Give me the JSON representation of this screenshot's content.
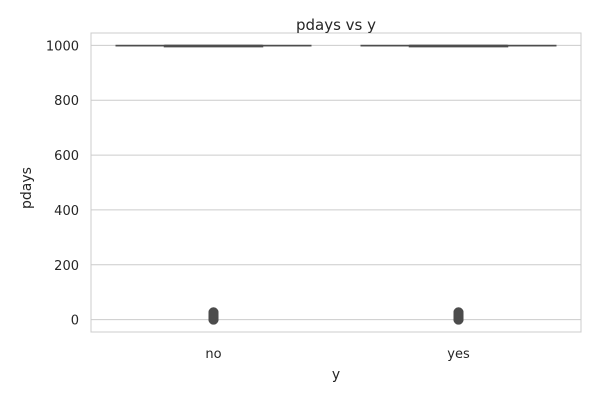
{
  "chart_data": {
    "type": "box",
    "title": "pdays vs y",
    "xlabel": "y",
    "ylabel": "pdays",
    "categories": [
      "no",
      "yes"
    ],
    "yticks": [
      0,
      200,
      400,
      600,
      800,
      1000
    ],
    "ylim": [
      -45,
      1045
    ],
    "grid": true,
    "box_color": "#4d4d4d",
    "outlier_color": "#4d4d4d",
    "boxes": [
      {
        "category": "no",
        "whisker_low": 999,
        "q1": 999,
        "median": 999,
        "q3": 999,
        "whisker_high": 999,
        "outliers": [
          0,
          1,
          2,
          3,
          4,
          5,
          6,
          7,
          8,
          9,
          10,
          11,
          12,
          13,
          14,
          15,
          16,
          17,
          18,
          19,
          20,
          21,
          22,
          25,
          27
        ]
      },
      {
        "category": "yes",
        "whisker_low": 999,
        "q1": 999,
        "median": 999,
        "q3": 999,
        "whisker_high": 999,
        "outliers": [
          0,
          1,
          2,
          3,
          4,
          5,
          6,
          7,
          8,
          9,
          10,
          11,
          12,
          13,
          14,
          15,
          16,
          17,
          18,
          19,
          20,
          21,
          22,
          25,
          26,
          27
        ]
      }
    ]
  }
}
